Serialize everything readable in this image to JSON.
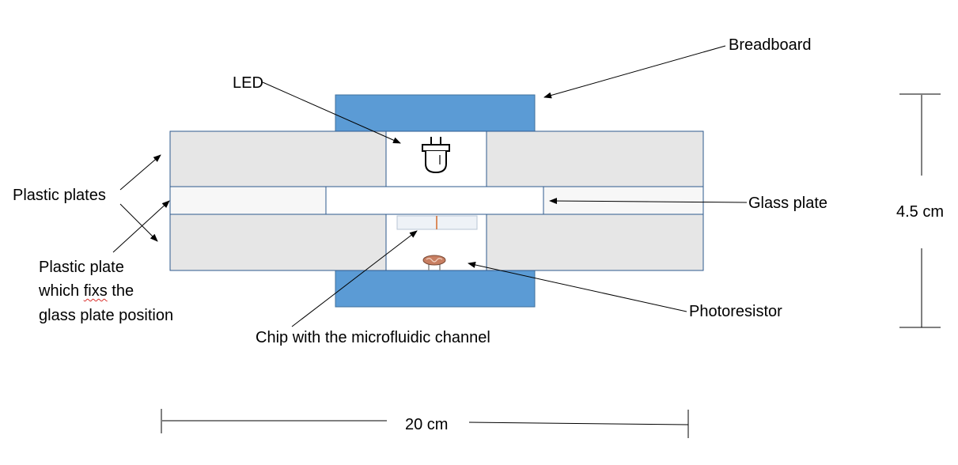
{
  "labels": {
    "breadboard": "Breadboard",
    "led": "LED",
    "plastic_plates": "Plastic plates",
    "fixing_plate_line1": "Plastic plate",
    "fixing_plate_line2_pre": "which ",
    "fixing_plate_line2_word": "fixs",
    "fixing_plate_line2_post": " the",
    "fixing_plate_line3": "glass plate position",
    "glass_plate": "Glass plate",
    "chip": "Chip with the microfluidic channel",
    "photoresistor": "Photoresistor",
    "height": "4.5 cm",
    "width": "20 cm"
  },
  "icons": [
    "led-icon",
    "photoresistor-icon"
  ],
  "colors": {
    "breadboard": "#5b9bd5",
    "plastic_plate": "#e6e6e6",
    "plate_border": "#2e5a8e",
    "glass_plate": "#ffffff",
    "chip_channel": "#d46a2a",
    "photoresistor": "#c87f62",
    "spellcheck_underline": "#d9302c"
  }
}
